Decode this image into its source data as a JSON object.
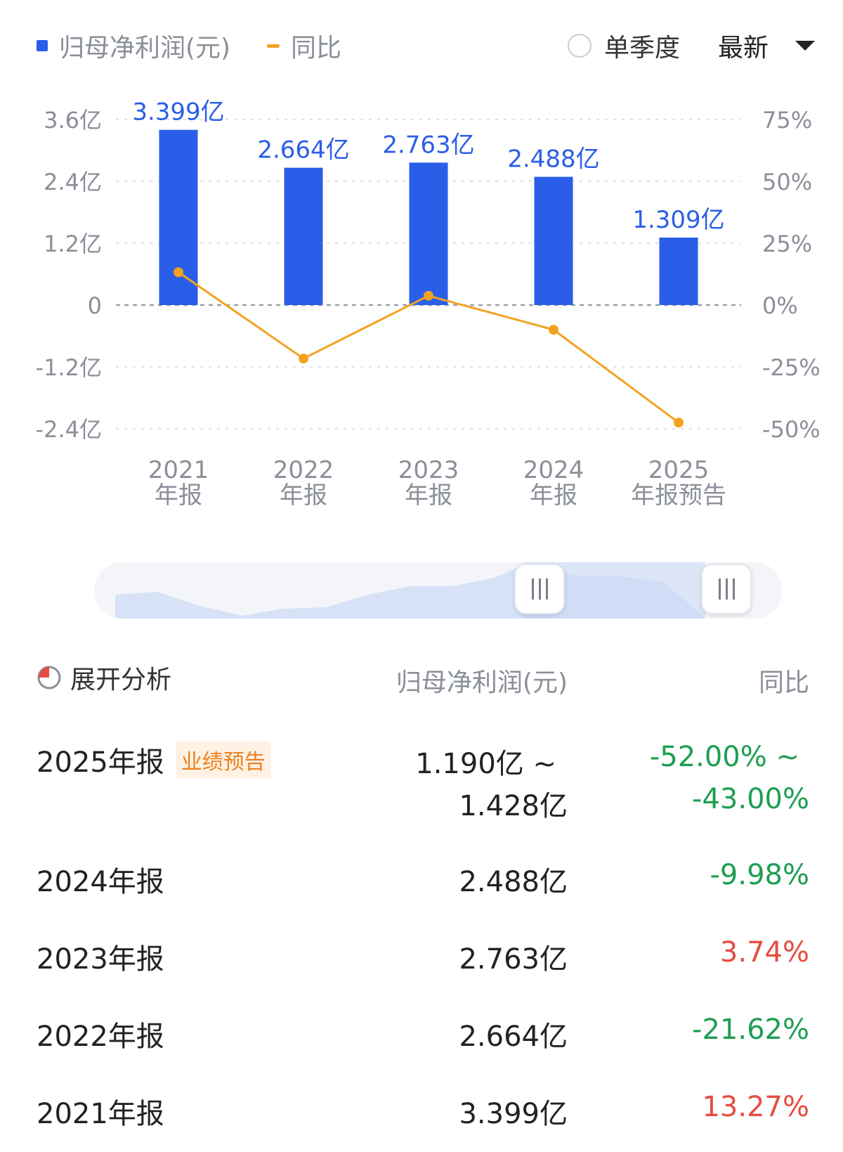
{
  "legend": {
    "bar_label": "归母净利润(元)",
    "line_label": "同比"
  },
  "controls": {
    "single_quarter_label": "单季度",
    "dropdown_value": "最新"
  },
  "colors": {
    "bar": "#2b5ee8",
    "line": "#f2a21f",
    "positive": "#e54d42",
    "negative": "#1e9e52"
  },
  "chart_data": {
    "type": "bar",
    "categories": [
      "2021\n年报",
      "2022\n年报",
      "2023\n年报",
      "2024\n年报",
      "2025\n年报预告"
    ],
    "series": [
      {
        "name": "归母净利润(元)",
        "type": "bar",
        "axis": "left",
        "values": [
          3.399,
          2.664,
          2.763,
          2.488,
          1.309
        ],
        "labels": [
          "3.399亿",
          "2.664亿",
          "2.763亿",
          "2.488亿",
          "1.309亿"
        ]
      },
      {
        "name": "同比",
        "type": "line",
        "axis": "right",
        "values": [
          13.27,
          -21.62,
          3.74,
          -9.98,
          -47.5
        ]
      }
    ],
    "y_left": {
      "ticks": [
        3.6,
        2.4,
        1.2,
        0,
        -1.2,
        -2.4
      ],
      "tick_labels": [
        "3.6亿",
        "2.4亿",
        "1.2亿",
        "0",
        "-1.2亿",
        "-2.4亿"
      ],
      "range": [
        -2.4,
        3.6
      ]
    },
    "y_right": {
      "ticks": [
        75,
        50,
        25,
        0,
        -25,
        -50
      ],
      "tick_labels": [
        "75%",
        "50%",
        "25%",
        "0%",
        "-25%",
        "-50%"
      ],
      "range": [
        -50,
        75
      ]
    },
    "grid": true,
    "legend_position": "top-left"
  },
  "table": {
    "expand_label": "展开分析",
    "col_value": "归母净利润(元)",
    "col_yoy": "同比",
    "rows": [
      {
        "label": "2025年报",
        "badge": "业绩预告",
        "value_line1": "1.190亿 ~",
        "value_line2": "1.428亿",
        "yoy_line1": "-52.00% ~",
        "yoy_line2": "-43.00%",
        "trend": "negative"
      },
      {
        "label": "2024年报",
        "value": "2.488亿",
        "yoy": "-9.98%",
        "trend": "negative"
      },
      {
        "label": "2023年报",
        "value": "2.763亿",
        "yoy": "3.74%",
        "trend": "positive"
      },
      {
        "label": "2022年报",
        "value": "2.664亿",
        "yoy": "-21.62%",
        "trend": "negative"
      },
      {
        "label": "2021年报",
        "value": "3.399亿",
        "yoy": "13.27%",
        "trend": "positive"
      }
    ]
  }
}
